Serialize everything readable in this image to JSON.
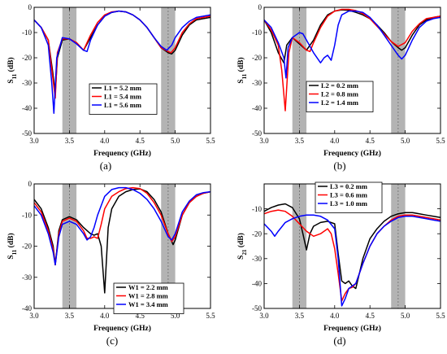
{
  "chart_data": [
    {
      "panel": "(a)",
      "type": "line",
      "xlabel": "Frequency (GHz)",
      "ylabel": "S11 (dB)",
      "ylabel_main": "S",
      "ylabel_sub": "11",
      "ylabel_unit": " (dB)",
      "xlim": [
        3.0,
        5.5
      ],
      "ylim": [
        -50,
        0
      ],
      "xticks": [
        "3.0",
        "3.5",
        "4.0",
        "4.5",
        "5.0",
        "5.5"
      ],
      "yticks": [
        "0",
        "-10",
        "-20",
        "-30",
        "-40",
        "-50"
      ],
      "shaded_bands": [
        [
          3.4,
          3.6
        ],
        [
          4.8,
          5.0
        ]
      ],
      "legend_position": "center-right",
      "series": [
        {
          "name": "L1 = 5.2 mm",
          "color": "#000000",
          "x": [
            3.0,
            3.1,
            3.2,
            3.26,
            3.3,
            3.33,
            3.4,
            3.5,
            3.6,
            3.7,
            3.8,
            3.9,
            4.0,
            4.1,
            4.2,
            4.3,
            4.4,
            4.5,
            4.6,
            4.7,
            4.8,
            4.9,
            4.95,
            5.0,
            5.1,
            5.2,
            5.3,
            5.4,
            5.5
          ],
          "y": [
            -5,
            -8,
            -13,
            -25,
            -34,
            -20,
            -13,
            -12.5,
            -14,
            -17,
            -12,
            -7,
            -3.5,
            -2,
            -1.5,
            -1.8,
            -3,
            -5,
            -8,
            -12,
            -16,
            -18,
            -18.5,
            -17,
            -11,
            -7,
            -5,
            -4.5,
            -4
          ]
        },
        {
          "name": "L1 = 5.4 mm",
          "color": "#ff0000",
          "x": [
            3.0,
            3.1,
            3.2,
            3.26,
            3.3,
            3.33,
            3.4,
            3.5,
            3.6,
            3.7,
            3.8,
            3.9,
            4.0,
            4.1,
            4.2,
            4.3,
            4.4,
            4.5,
            4.6,
            4.7,
            4.8,
            4.9,
            4.94,
            5.0,
            5.1,
            5.2,
            5.3,
            5.4,
            5.5
          ],
          "y": [
            -5,
            -8,
            -13,
            -27,
            -36,
            -18,
            -12.5,
            -12.5,
            -14,
            -17,
            -11,
            -6,
            -3,
            -1.8,
            -1.5,
            -1.8,
            -3,
            -5,
            -8,
            -12,
            -16,
            -17.5,
            -18,
            -16,
            -10,
            -6.5,
            -4.5,
            -4,
            -3.5
          ]
        },
        {
          "name": "L1 = 5.6 mm",
          "color": "#0000ff",
          "x": [
            3.0,
            3.1,
            3.2,
            3.25,
            3.28,
            3.32,
            3.4,
            3.5,
            3.6,
            3.7,
            3.75,
            3.8,
            3.9,
            4.0,
            4.1,
            4.2,
            4.3,
            4.4,
            4.5,
            4.6,
            4.7,
            4.8,
            4.88,
            4.95,
            5.0,
            5.1,
            5.2,
            5.3,
            5.4,
            5.5
          ],
          "y": [
            -5,
            -8,
            -15,
            -30,
            -42,
            -20,
            -12,
            -12.5,
            -14.5,
            -17,
            -17.5,
            -13,
            -7,
            -3.5,
            -2,
            -1.5,
            -1.8,
            -3,
            -5,
            -8,
            -12,
            -15.5,
            -17,
            -15,
            -12,
            -8,
            -5.5,
            -4,
            -3.5,
            -3
          ]
        }
      ]
    },
    {
      "panel": "(b)",
      "type": "line",
      "xlabel": "Frequency (GHz)",
      "ylabel": "S11 (dB)",
      "ylabel_main": "S",
      "ylabel_sub": "11",
      "ylabel_unit": " (dB)",
      "xlim": [
        3.0,
        5.5
      ],
      "ylim": [
        -50,
        0
      ],
      "xticks": [
        "3.0",
        "3.5",
        "4.0",
        "4.5",
        "5.0",
        "5.5"
      ],
      "yticks": [
        "0",
        "-10",
        "-20",
        "-30",
        "-40",
        "-50"
      ],
      "shaded_bands": [
        [
          3.4,
          3.6
        ],
        [
          4.8,
          5.0
        ]
      ],
      "legend_position": "center-left",
      "series": [
        {
          "name": "L2 = 0.2 mm",
          "color": "#000000",
          "x": [
            3.0,
            3.1,
            3.2,
            3.28,
            3.32,
            3.4,
            3.5,
            3.6,
            3.7,
            3.8,
            3.9,
            4.0,
            4.1,
            4.2,
            4.3,
            4.4,
            4.5,
            4.6,
            4.7,
            4.8,
            4.9,
            4.95,
            5.0,
            5.1,
            5.2,
            5.3,
            5.4,
            5.5
          ],
          "y": [
            -5,
            -10,
            -18,
            -22,
            -15,
            -12,
            -14.5,
            -17,
            -13,
            -7,
            -3,
            -1.5,
            -1,
            -1.2,
            -2,
            -3,
            -4.5,
            -7,
            -10,
            -13.5,
            -16,
            -17,
            -16,
            -11,
            -7,
            -5,
            -4,
            -3.5
          ]
        },
        {
          "name": "L2 = 0.8 mm",
          "color": "#ff0000",
          "x": [
            3.0,
            3.1,
            3.2,
            3.25,
            3.3,
            3.35,
            3.4,
            3.5,
            3.6,
            3.65,
            3.7,
            3.8,
            3.9,
            4.0,
            4.1,
            4.2,
            4.3,
            4.4,
            4.5,
            4.6,
            4.7,
            4.8,
            4.9,
            5.0,
            5.1,
            5.2,
            5.3,
            5.4,
            5.5
          ],
          "y": [
            -5,
            -9,
            -15,
            -25,
            -41,
            -18,
            -12,
            -14,
            -17,
            -17.5,
            -14,
            -8,
            -3.5,
            -1.5,
            -0.8,
            -0.8,
            -1.3,
            -2.5,
            -4.5,
            -7.5,
            -10.5,
            -13.5,
            -15.5,
            -14,
            -9.5,
            -6.5,
            -4.5,
            -4,
            -3.5
          ]
        },
        {
          "name": "L2 = 1.4 mm",
          "color": "#0000ff",
          "x": [
            3.0,
            3.1,
            3.2,
            3.28,
            3.31,
            3.34,
            3.4,
            3.5,
            3.55,
            3.6,
            3.7,
            3.8,
            3.85,
            3.9,
            3.95,
            4.0,
            4.05,
            4.1,
            4.2,
            4.3,
            4.4,
            4.5,
            4.6,
            4.7,
            4.8,
            4.9,
            4.95,
            5.0,
            5.1,
            5.2,
            5.3,
            5.4,
            5.5
          ],
          "y": [
            -5,
            -8,
            -14,
            -20,
            -28,
            -16,
            -12,
            -10,
            -10.5,
            -13,
            -18,
            -22,
            -20,
            -19,
            -21,
            -15,
            -7,
            -3,
            -1.5,
            -1.5,
            -2,
            -4,
            -7,
            -11,
            -15,
            -19,
            -20.5,
            -19,
            -13,
            -8,
            -5.5,
            -4.5,
            -4
          ]
        }
      ]
    },
    {
      "panel": "(c)",
      "type": "line",
      "xlabel": "Frequency (GHz)",
      "ylabel": "S11 (dB)",
      "ylabel_main": "S",
      "ylabel_sub": "11",
      "ylabel_unit": " (dB)",
      "xlim": [
        3.0,
        5.5
      ],
      "ylim": [
        -40,
        0
      ],
      "xticks": [
        "3.0",
        "3.5",
        "4.0",
        "4.5",
        "5.0",
        "5.5"
      ],
      "yticks": [
        "0",
        "-10",
        "-20",
        "-30",
        "-40"
      ],
      "shaded_bands": [
        [
          3.4,
          3.6
        ],
        [
          4.8,
          5.0
        ]
      ],
      "legend_position": "bottom-center",
      "series": [
        {
          "name": "W1 = 2.2 mm",
          "color": "#000000",
          "x": [
            3.0,
            3.1,
            3.2,
            3.27,
            3.3,
            3.35,
            3.4,
            3.5,
            3.6,
            3.7,
            3.8,
            3.85,
            3.9,
            3.95,
            4.0,
            4.05,
            4.1,
            4.2,
            4.3,
            4.4,
            4.5,
            4.6,
            4.7,
            4.8,
            4.9,
            4.97,
            5.0,
            5.1,
            5.2,
            5.3,
            5.4,
            5.5
          ],
          "y": [
            -5,
            -8,
            -14,
            -20,
            -26,
            -15,
            -11.5,
            -10.5,
            -11.5,
            -14,
            -16,
            -16.5,
            -16,
            -20,
            -35,
            -14,
            -8,
            -4,
            -2.5,
            -1.8,
            -1.6,
            -2.5,
            -5,
            -9,
            -16,
            -19.5,
            -18,
            -10,
            -6,
            -4,
            -3,
            -2.5
          ]
        },
        {
          "name": "W1 = 2.8 mm",
          "color": "#ff0000",
          "x": [
            3.0,
            3.1,
            3.2,
            3.27,
            3.3,
            3.35,
            3.4,
            3.5,
            3.6,
            3.7,
            3.75,
            3.8,
            3.85,
            3.9,
            3.95,
            4.0,
            4.1,
            4.2,
            4.3,
            4.4,
            4.5,
            4.6,
            4.7,
            4.8,
            4.9,
            4.95,
            5.0,
            5.1,
            5.2,
            5.3,
            5.4,
            5.5
          ],
          "y": [
            -6,
            -9,
            -15,
            -21,
            -26,
            -16,
            -12,
            -11,
            -12,
            -15,
            -17.5,
            -17.5,
            -17,
            -17.5,
            -13,
            -8,
            -4,
            -2.5,
            -1.5,
            -1.2,
            -1.5,
            -3,
            -6,
            -10,
            -16,
            -18.5,
            -17,
            -10,
            -6,
            -4,
            -3,
            -2.5
          ]
        },
        {
          "name": "W1 = 3.4 mm",
          "color": "#0000ff",
          "x": [
            3.0,
            3.1,
            3.2,
            3.27,
            3.3,
            3.35,
            3.4,
            3.5,
            3.6,
            3.7,
            3.75,
            3.8,
            3.85,
            3.9,
            4.0,
            4.1,
            4.2,
            4.3,
            4.4,
            4.5,
            4.6,
            4.7,
            4.8,
            4.9,
            4.95,
            5.0,
            5.1,
            5.2,
            5.3,
            5.4,
            5.5
          ],
          "y": [
            -7,
            -10,
            -16,
            -22,
            -26,
            -17,
            -13,
            -12,
            -13,
            -16,
            -18,
            -17,
            -14,
            -10,
            -4,
            -1.8,
            -1.2,
            -1.2,
            -1.8,
            -3,
            -5,
            -8,
            -12,
            -17,
            -18,
            -16,
            -9,
            -5.5,
            -3.5,
            -2.8,
            -2.5
          ]
        }
      ]
    },
    {
      "panel": "(d)",
      "type": "line",
      "xlabel": "Frequency (GHz)",
      "ylabel": "S21 (dB)",
      "ylabel_main": "S",
      "ylabel_sub": "21",
      "ylabel_unit": " (dB)",
      "xlim": [
        3.0,
        5.5
      ],
      "ylim": [
        -50,
        0
      ],
      "xticks": [
        "3.0",
        "3.5",
        "4.0",
        "4.5",
        "5.0",
        "5.5"
      ],
      "yticks": [
        "-10",
        "-20",
        "-30",
        "-40",
        "-50"
      ],
      "shaded_bands": [
        [
          3.4,
          3.6
        ],
        [
          4.8,
          5.0
        ]
      ],
      "legend_position": "top-left",
      "series": [
        {
          "name": "L3 = 0.2 mm",
          "color": "#000000",
          "x": [
            3.0,
            3.1,
            3.2,
            3.3,
            3.4,
            3.5,
            3.55,
            3.6,
            3.65,
            3.7,
            3.8,
            3.9,
            4.0,
            4.05,
            4.1,
            4.15,
            4.2,
            4.25,
            4.3,
            4.4,
            4.5,
            4.6,
            4.7,
            4.8,
            4.9,
            5.0,
            5.1,
            5.2,
            5.3,
            5.4,
            5.5
          ],
          "y": [
            -11,
            -9.5,
            -8.5,
            -8,
            -9.5,
            -14,
            -20,
            -26.5,
            -20,
            -17,
            -15.5,
            -15,
            -16,
            -28,
            -39,
            -40,
            -39,
            -41,
            -42,
            -30,
            -22,
            -18,
            -15,
            -13,
            -12,
            -11.5,
            -11.5,
            -12,
            -12.5,
            -13,
            -13.5
          ]
        },
        {
          "name": "L3 = 0.6 mm",
          "color": "#ff0000",
          "x": [
            3.0,
            3.1,
            3.2,
            3.3,
            3.4,
            3.5,
            3.6,
            3.7,
            3.8,
            3.9,
            3.95,
            4.0,
            4.05,
            4.1,
            4.15,
            4.2,
            4.25,
            4.3,
            4.4,
            4.5,
            4.6,
            4.7,
            4.8,
            4.9,
            5.0,
            5.1,
            5.2,
            5.3,
            5.4,
            5.5
          ],
          "y": [
            -12,
            -11,
            -10.5,
            -11,
            -13,
            -16,
            -19,
            -21,
            -20,
            -18,
            -20,
            -26,
            -36,
            -47,
            -44,
            -42,
            -41.5,
            -40,
            -32,
            -25,
            -20,
            -17,
            -14.5,
            -13,
            -12.5,
            -12.5,
            -13,
            -13.5,
            -14,
            -14.5
          ]
        },
        {
          "name": "L3 = 1.0 mm",
          "color": "#0000ff",
          "x": [
            3.0,
            3.1,
            3.15,
            3.2,
            3.3,
            3.4,
            3.5,
            3.6,
            3.7,
            3.8,
            3.9,
            4.0,
            4.05,
            4.1,
            4.15,
            4.2,
            4.3,
            4.4,
            4.5,
            4.6,
            4.7,
            4.8,
            4.9,
            5.0,
            5.1,
            5.2,
            5.3,
            5.4,
            5.5
          ],
          "y": [
            -16,
            -19,
            -21,
            -19,
            -15.5,
            -14,
            -13,
            -12.5,
            -12.5,
            -13,
            -14.5,
            -18,
            -30,
            -49,
            -46,
            -42,
            -40,
            -32,
            -25,
            -20,
            -17,
            -15,
            -13.5,
            -13,
            -13,
            -13.5,
            -14,
            -14.5,
            -15
          ]
        }
      ]
    }
  ]
}
